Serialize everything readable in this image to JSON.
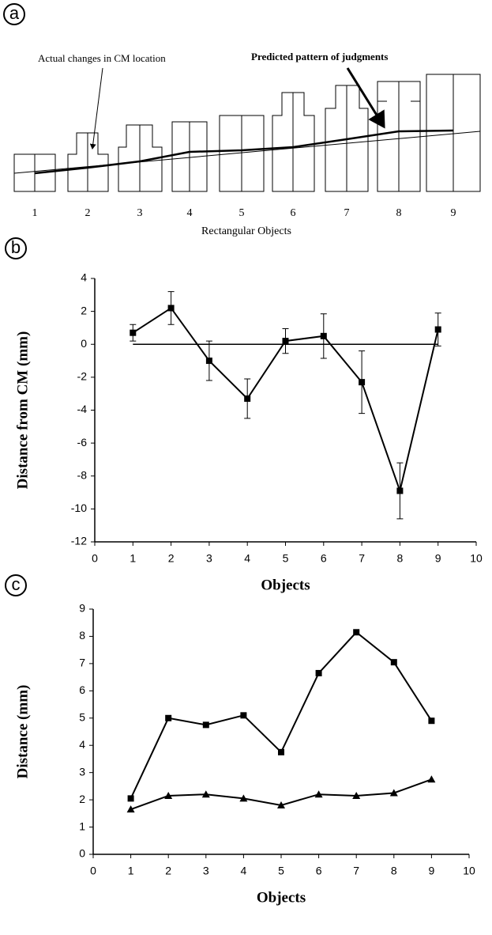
{
  "panels": [
    "a",
    "b",
    "c"
  ],
  "diagram": {
    "actual_label": "Actual changes in CM location",
    "predicted_label": "Predicted pattern of judgments",
    "object_labels": [
      "1",
      "2",
      "3",
      "4",
      "5",
      "6",
      "7",
      "8",
      "9"
    ],
    "xlabel": "Rectangular Objects"
  },
  "chart_data": [
    {
      "type": "line",
      "xlabel": "Objects",
      "ylabel": "Distance from CM (mm)",
      "x": [
        1,
        2,
        3,
        4,
        5,
        6,
        7,
        8,
        9
      ],
      "series": [
        {
          "color": "#000000",
          "marker": "square",
          "values": [
            0.7,
            2.2,
            -1.0,
            -3.3,
            0.2,
            0.5,
            -2.3,
            -8.9,
            0.9
          ],
          "errors": [
            0.5,
            1.0,
            1.2,
            1.2,
            0.75,
            1.35,
            1.9,
            1.7,
            1.0
          ]
        }
      ],
      "hline": 0,
      "xlim": [
        0,
        10
      ],
      "xticks": [
        0,
        1,
        2,
        3,
        4,
        5,
        6,
        7,
        8,
        9,
        10
      ],
      "ylim": [
        -12,
        4
      ],
      "yticks": [
        -12,
        -10,
        -8,
        -6,
        -4,
        -2,
        0,
        2,
        4
      ]
    },
    {
      "type": "line",
      "xlabel": "Objects",
      "ylabel": "Distance (mm)",
      "x": [
        1,
        2,
        3,
        4,
        5,
        6,
        7,
        8,
        9
      ],
      "series": [
        {
          "color": "#000000",
          "marker": "square",
          "values": [
            2.05,
            5.0,
            4.75,
            5.1,
            3.75,
            6.65,
            8.15,
            7.05,
            4.9
          ]
        },
        {
          "color": "#000000",
          "marker": "triangle",
          "values": [
            1.65,
            2.15,
            2.2,
            2.05,
            1.8,
            2.2,
            2.15,
            2.25,
            2.75
          ]
        }
      ],
      "xlim": [
        0,
        10
      ],
      "xticks": [
        0,
        1,
        2,
        3,
        4,
        5,
        6,
        7,
        8,
        9,
        10
      ],
      "ylim": [
        0,
        9
      ],
      "yticks": [
        0,
        1,
        2,
        3,
        4,
        5,
        6,
        7,
        8,
        9
      ]
    }
  ]
}
